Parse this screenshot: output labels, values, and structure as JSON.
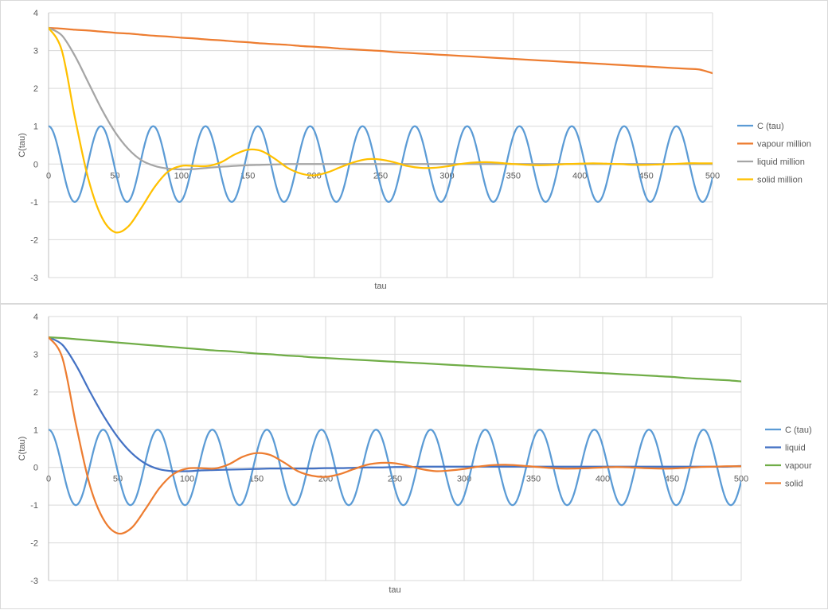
{
  "chart_data": [
    {
      "type": "line",
      "xlabel": "tau",
      "ylabel": "C(tau)",
      "xlim": [
        0,
        500
      ],
      "ylim": [
        -3,
        4
      ],
      "x_ticks": [
        0,
        50,
        100,
        150,
        200,
        250,
        300,
        350,
        400,
        450,
        500
      ],
      "y_ticks": [
        4,
        3,
        2,
        1,
        0,
        -1,
        -2,
        -3
      ],
      "grid": true,
      "legend_position": "right",
      "x": [
        0,
        10,
        20,
        30,
        40,
        50,
        60,
        70,
        80,
        90,
        100,
        110,
        120,
        130,
        140,
        150,
        160,
        170,
        180,
        190,
        200,
        210,
        220,
        230,
        240,
        250,
        260,
        270,
        280,
        290,
        300,
        310,
        320,
        330,
        340,
        350,
        360,
        370,
        380,
        390,
        400,
        410,
        420,
        430,
        440,
        450,
        460,
        470,
        480,
        490,
        500
      ],
      "series": [
        {
          "name": "C (tau)",
          "color": "#5B9BD5",
          "kind": "cosine",
          "amplitude": 1,
          "period": 39.4,
          "phase": 0,
          "x_range": [
            0,
            500
          ]
        },
        {
          "name": "vapour million",
          "color": "#ED7D31",
          "values": [
            3.6,
            3.58,
            3.55,
            3.53,
            3.5,
            3.47,
            3.45,
            3.42,
            3.39,
            3.37,
            3.34,
            3.32,
            3.29,
            3.27,
            3.24,
            3.22,
            3.19,
            3.17,
            3.15,
            3.12,
            3.1,
            3.08,
            3.05,
            3.03,
            3.01,
            2.99,
            2.96,
            2.94,
            2.92,
            2.9,
            2.88,
            2.86,
            2.84,
            2.82,
            2.8,
            2.78,
            2.76,
            2.74,
            2.72,
            2.7,
            2.68,
            2.66,
            2.64,
            2.62,
            2.6,
            2.58,
            2.56,
            2.54,
            2.52,
            2.5,
            2.4
          ]
        },
        {
          "name": "liquid million",
          "color": "#A5A5A5",
          "values": [
            3.6,
            3.4,
            2.85,
            2.15,
            1.45,
            0.85,
            0.4,
            0.1,
            -0.05,
            -0.12,
            -0.14,
            -0.13,
            -0.1,
            -0.07,
            -0.05,
            -0.03,
            -0.02,
            -0.01,
            0,
            0,
            0,
            0,
            0,
            0,
            0,
            0,
            0,
            0,
            0,
            0,
            0,
            0,
            0,
            0,
            0,
            0,
            0,
            0,
            0,
            0,
            0,
            0,
            0,
            0,
            0,
            0,
            0,
            0,
            0,
            0,
            0
          ]
        },
        {
          "name": "solid million",
          "color": "#FFC000",
          "values": [
            3.6,
            3.0,
            1.2,
            -0.4,
            -1.4,
            -1.8,
            -1.65,
            -1.15,
            -0.6,
            -0.2,
            -0.05,
            -0.05,
            -0.05,
            0.05,
            0.25,
            0.38,
            0.35,
            0.15,
            -0.1,
            -0.25,
            -0.3,
            -0.22,
            -0.08,
            0.05,
            0.13,
            0.12,
            0.05,
            -0.05,
            -0.1,
            -0.1,
            -0.06,
            0,
            0.04,
            0.05,
            0.03,
            0,
            -0.02,
            -0.03,
            -0.02,
            0,
            0.01,
            0.02,
            0.01,
            0,
            -0.02,
            -0.02,
            -0.01,
            0,
            0.02,
            0.02,
            0.02
          ]
        }
      ]
    },
    {
      "type": "line",
      "xlabel": "tau",
      "ylabel": "C(tau)",
      "xlim": [
        0,
        500
      ],
      "ylim": [
        -3,
        4
      ],
      "x_ticks": [
        0,
        50,
        100,
        150,
        200,
        250,
        300,
        350,
        400,
        450,
        500
      ],
      "y_ticks": [
        4,
        3,
        2,
        1,
        0,
        -1,
        -2,
        -3
      ],
      "grid": true,
      "legend_position": "right",
      "x": [
        0,
        10,
        20,
        30,
        40,
        50,
        60,
        70,
        80,
        90,
        100,
        110,
        120,
        130,
        140,
        150,
        160,
        170,
        180,
        190,
        200,
        210,
        220,
        230,
        240,
        250,
        260,
        270,
        280,
        290,
        300,
        310,
        320,
        330,
        340,
        350,
        360,
        370,
        380,
        390,
        400,
        410,
        420,
        430,
        440,
        450,
        460,
        470,
        480,
        490,
        500
      ],
      "series": [
        {
          "name": "C (tau)",
          "color": "#5B9BD5",
          "kind": "cosine",
          "amplitude": 1,
          "period": 39.4,
          "phase": 0,
          "x_range": [
            0,
            500
          ]
        },
        {
          "name": "liquid",
          "color": "#4472C4",
          "values": [
            3.45,
            3.25,
            2.7,
            2.0,
            1.35,
            0.8,
            0.38,
            0.1,
            -0.05,
            -0.1,
            -0.1,
            -0.08,
            -0.07,
            -0.06,
            -0.05,
            -0.04,
            -0.03,
            -0.03,
            -0.03,
            -0.03,
            -0.02,
            -0.02,
            -0.01,
            0,
            0,
            0.01,
            0.01,
            0.02,
            0.02,
            0.02,
            0.02,
            0.02,
            0.02,
            0.02,
            0.02,
            0.02,
            0.02,
            0.02,
            0.02,
            0.02,
            0.02,
            0.02,
            0.02,
            0.02,
            0.02,
            0.02,
            0.02,
            0.02,
            0.02,
            0.02,
            0.04
          ]
        },
        {
          "name": "vapour",
          "color": "#70AD47",
          "values": [
            3.45,
            3.43,
            3.4,
            3.37,
            3.34,
            3.31,
            3.28,
            3.25,
            3.22,
            3.19,
            3.16,
            3.13,
            3.1,
            3.08,
            3.05,
            3.02,
            3.0,
            2.97,
            2.95,
            2.92,
            2.9,
            2.88,
            2.86,
            2.84,
            2.82,
            2.8,
            2.78,
            2.76,
            2.74,
            2.72,
            2.7,
            2.68,
            2.66,
            2.64,
            2.62,
            2.6,
            2.58,
            2.56,
            2.54,
            2.52,
            2.5,
            2.48,
            2.46,
            2.44,
            2.42,
            2.4,
            2.37,
            2.35,
            2.33,
            2.31,
            2.28
          ]
        },
        {
          "name": "solid",
          "color": "#ED7D31",
          "values": [
            3.45,
            2.9,
            1.1,
            -0.5,
            -1.4,
            -1.75,
            -1.6,
            -1.1,
            -0.55,
            -0.18,
            -0.03,
            -0.02,
            -0.03,
            0.08,
            0.28,
            0.38,
            0.33,
            0.13,
            -0.1,
            -0.22,
            -0.25,
            -0.18,
            -0.05,
            0.07,
            0.12,
            0.11,
            0.04,
            -0.05,
            -0.1,
            -0.08,
            -0.04,
            0.02,
            0.06,
            0.07,
            0.05,
            0.02,
            -0.01,
            -0.03,
            -0.03,
            -0.02,
            0,
            0.01,
            0,
            -0.02,
            -0.03,
            -0.03,
            -0.01,
            0.01,
            0.02,
            0.03,
            0.03
          ]
        }
      ]
    }
  ]
}
